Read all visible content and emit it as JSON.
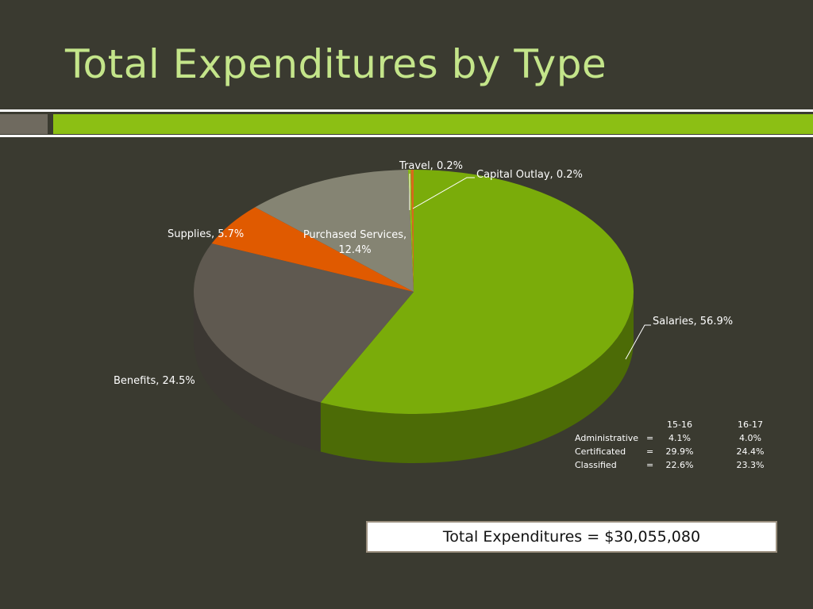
{
  "title": "Total Expenditures by Type",
  "chart_data": {
    "type": "pie",
    "title": "",
    "style": "3d",
    "colors": {
      "Salaries": "#7aac0a",
      "Benefits": "#5f5950",
      "Supplies": "#e05a00",
      "Purchased Services": "#858473",
      "Travel": "#8cbf14",
      "Capital Outlay": "#d9691c"
    },
    "slices": [
      {
        "label": "Salaries",
        "value": 56.9,
        "display": "Salaries, 56.9%"
      },
      {
        "label": "Benefits",
        "value": 24.5,
        "display": "Benefits, 24.5%"
      },
      {
        "label": "Supplies",
        "value": 5.7,
        "display": "Supplies, 5.7%"
      },
      {
        "label": "Purchased Services",
        "value": 12.4,
        "display": "Purchased Services,",
        "display2": "12.4%"
      },
      {
        "label": "Travel",
        "value": 0.2,
        "display": "Travel, 0.2%"
      },
      {
        "label": "Capital Outlay",
        "value": 0.2,
        "display": "Capital Outlay, 0.2%"
      }
    ]
  },
  "table": {
    "headers": [
      "15-16",
      "16-17"
    ],
    "rows": [
      {
        "name": "Administrative",
        "eq": "=",
        "a": "4.1%",
        "b": "4.0%"
      },
      {
        "name": "Certificated",
        "eq": "=",
        "a": "29.9%",
        "b": "24.4%"
      },
      {
        "name": "Classified",
        "eq": "=",
        "a": "22.6%",
        "b": "23.3%"
      }
    ]
  },
  "total_text": "Total Expenditures = $30,055,080"
}
